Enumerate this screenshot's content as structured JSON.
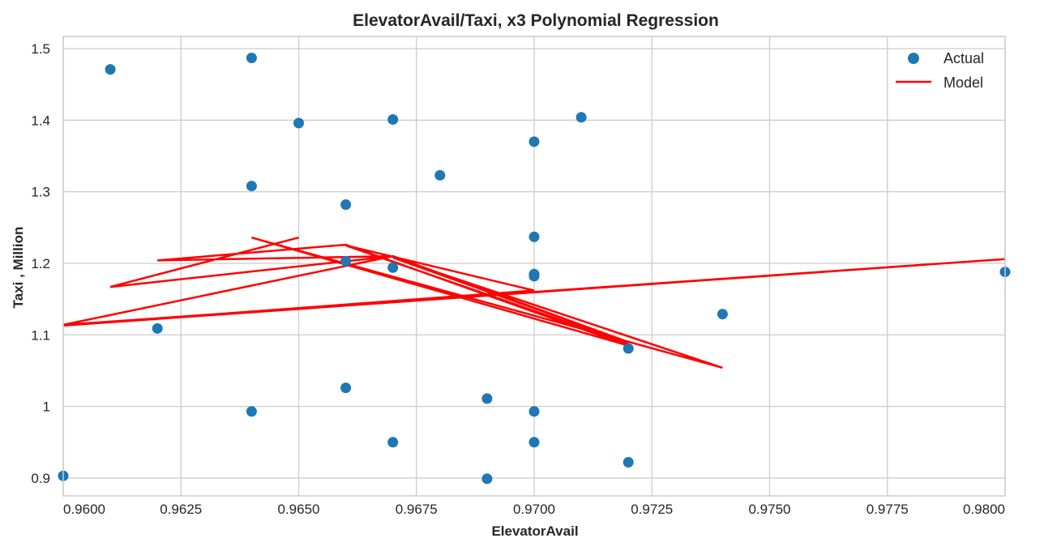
{
  "chart_data": {
    "type": "scatter",
    "title": "ElevatorAvail/Taxi, x3 Polynomial Regression",
    "xlabel": "ElevatorAvail",
    "ylabel": "Taxi , Million",
    "xlim": [
      0.96,
      0.98
    ],
    "ylim": [
      0.875,
      1.517
    ],
    "xticks": [
      0.96,
      0.9625,
      0.965,
      0.9675,
      0.97,
      0.9725,
      0.975,
      0.9775,
      0.98
    ],
    "xtick_labels": [
      "0.9600",
      "0.9625",
      "0.9650",
      "0.9675",
      "0.9700",
      "0.9725",
      "0.9750",
      "0.9775",
      "0.9800"
    ],
    "yticks": [
      0.9,
      1.0,
      1.1,
      1.2,
      1.3,
      1.4,
      1.5
    ],
    "ytick_labels": [
      "0.9",
      "1",
      "1.1",
      "1.2",
      "1.3",
      "1.4",
      "1.5"
    ],
    "grid": true,
    "legend": {
      "position": "top-right",
      "entries": [
        "Actual",
        "Model"
      ]
    },
    "series": [
      {
        "name": "Actual",
        "kind": "scatter",
        "color": "#1f77b4",
        "points": [
          [
            0.96,
            0.903
          ],
          [
            0.961,
            1.471
          ],
          [
            0.962,
            1.109
          ],
          [
            0.964,
            1.487
          ],
          [
            0.964,
            1.308
          ],
          [
            0.964,
            0.993
          ],
          [
            0.965,
            1.396
          ],
          [
            0.966,
            1.282
          ],
          [
            0.966,
            1.203
          ],
          [
            0.966,
            1.026
          ],
          [
            0.967,
            1.401
          ],
          [
            0.967,
            1.194
          ],
          [
            0.967,
            0.95
          ],
          [
            0.968,
            1.323
          ],
          [
            0.969,
            1.011
          ],
          [
            0.969,
            0.899
          ],
          [
            0.97,
            1.37
          ],
          [
            0.97,
            1.237
          ],
          [
            0.97,
            1.185
          ],
          [
            0.97,
            1.182
          ],
          [
            0.97,
            0.993
          ],
          [
            0.97,
            0.95
          ],
          [
            0.971,
            1.404
          ],
          [
            0.972,
            1.081
          ],
          [
            0.972,
            0.922
          ],
          [
            0.974,
            1.129
          ],
          [
            0.98,
            1.188
          ]
        ]
      },
      {
        "name": "Model",
        "kind": "line",
        "color": "#ff0000",
        "points": [
          [
            0.965,
            1.236
          ],
          [
            0.961,
            1.167
          ],
          [
            0.967,
            1.21
          ],
          [
            0.962,
            1.204
          ],
          [
            0.966,
            1.226
          ],
          [
            0.972,
            1.085
          ],
          [
            0.964,
            1.236
          ],
          [
            0.974,
            1.054
          ],
          [
            0.967,
            1.208
          ],
          [
            0.972,
            1.09
          ],
          [
            0.967,
            1.21
          ],
          [
            0.96,
            1.114
          ],
          [
            0.98,
            1.206
          ],
          [
            0.96,
            1.113
          ],
          [
            0.97,
            1.162
          ],
          [
            0.966,
            1.225
          ],
          [
            0.972,
            1.088
          ]
        ]
      }
    ]
  }
}
